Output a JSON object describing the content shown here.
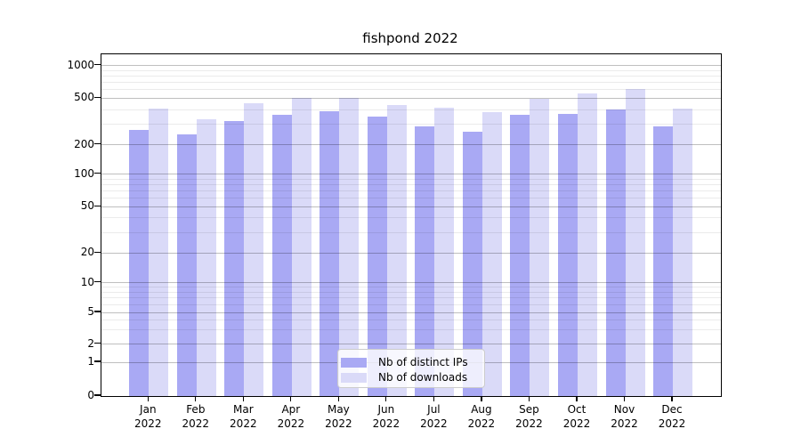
{
  "chart_data": {
    "type": "bar",
    "title": "fishpond 2022",
    "categories": [
      "Jan",
      "Feb",
      "Mar",
      "Apr",
      "May",
      "Jun",
      "Jul",
      "Aug",
      "Sep",
      "Oct",
      "Nov",
      "Dec"
    ],
    "year_suffix": "2022",
    "series": [
      {
        "name": "Nb of distinct IPs",
        "color": "#a9a9f4",
        "values": [
          270,
          245,
          320,
          360,
          385,
          350,
          285,
          260,
          360,
          365,
          400,
          285
        ]
      },
      {
        "name": "Nb of downloads",
        "color": "#dadaf8",
        "values": [
          405,
          330,
          450,
          505,
          505,
          435,
          415,
          380,
          490,
          550,
          605,
          410
        ]
      }
    ],
    "yscale": "symlog",
    "yticks": [
      0,
      1,
      2,
      5,
      10,
      20,
      50,
      100,
      200,
      500,
      1000
    ],
    "ylim": [
      0,
      1100
    ],
    "xlabel": "",
    "ylabel": "",
    "grid": "both",
    "legend_position": "bottom-center"
  }
}
